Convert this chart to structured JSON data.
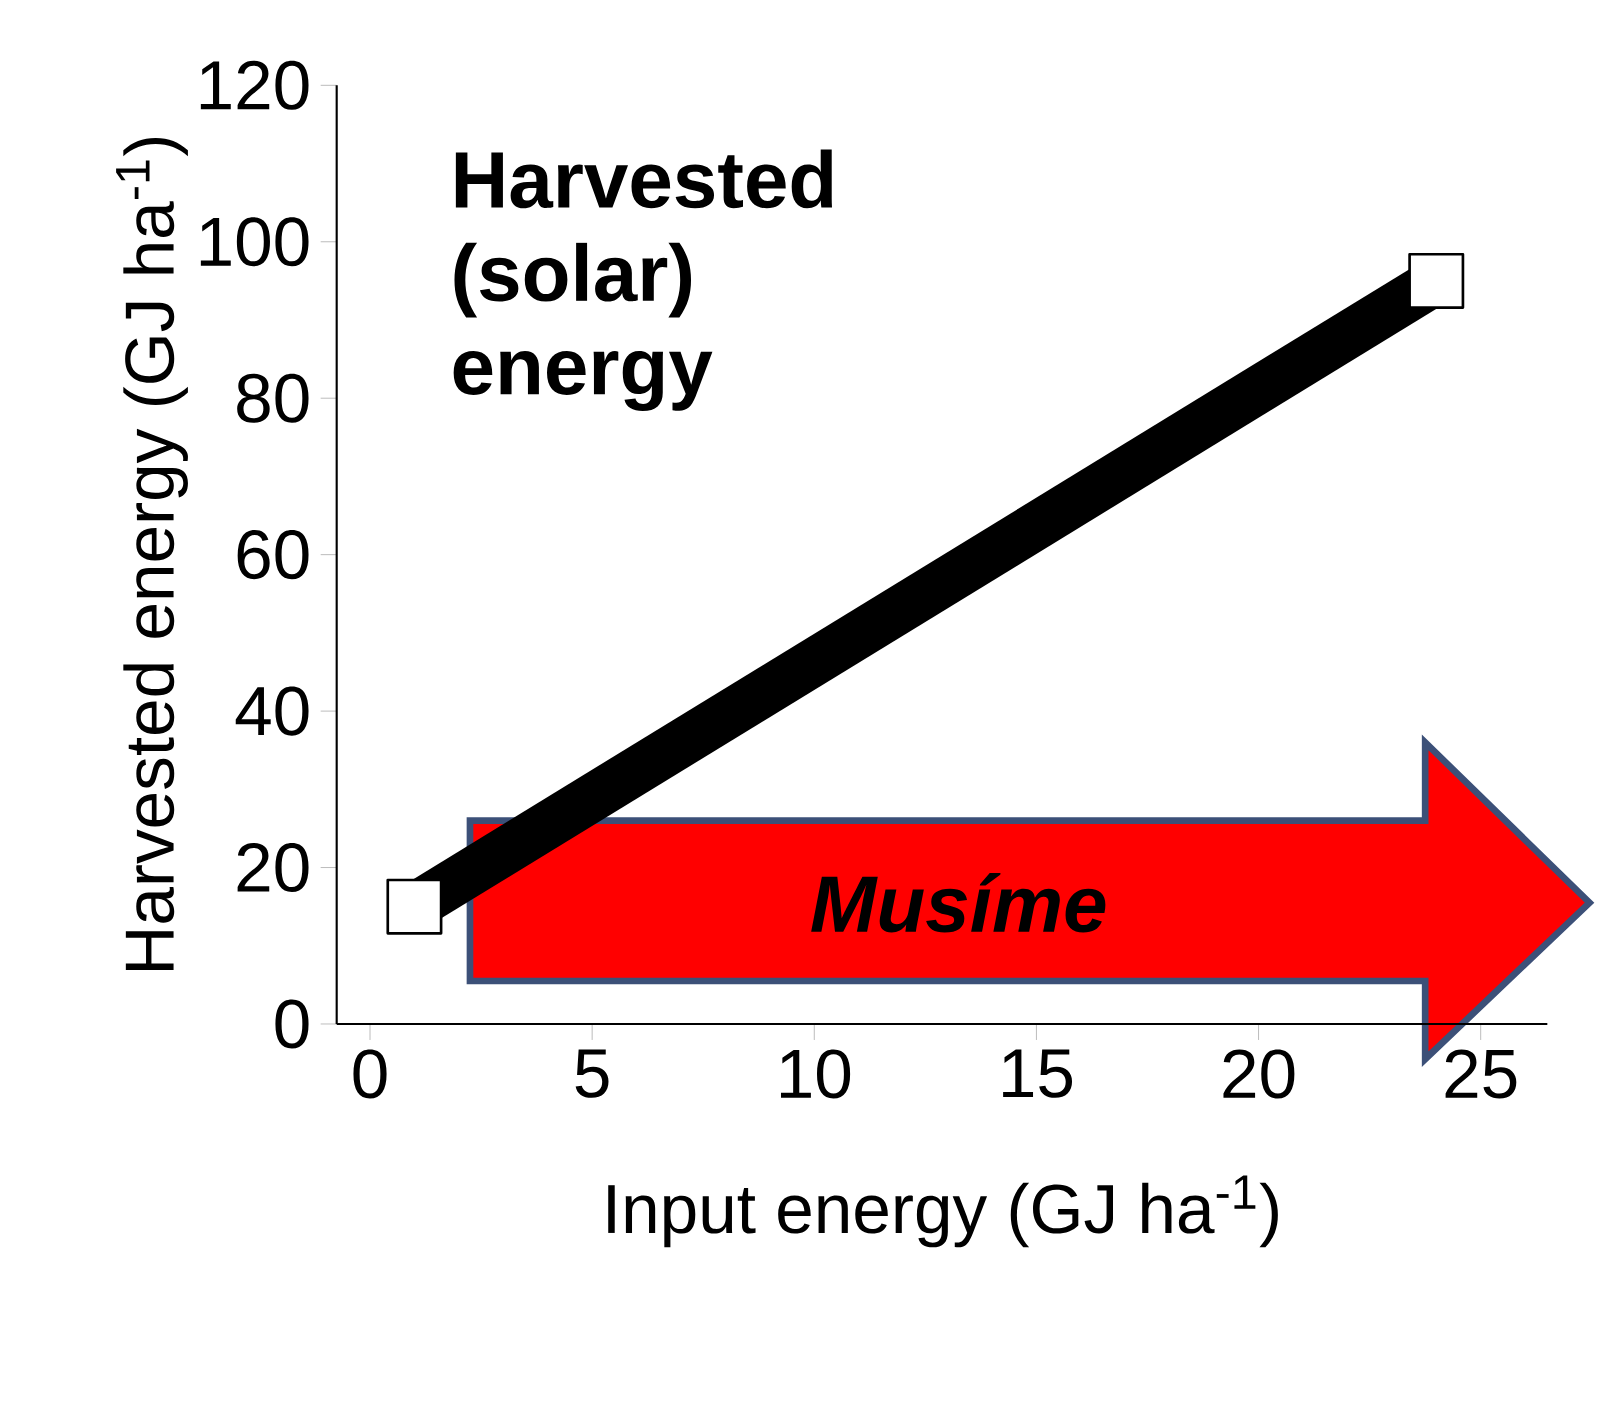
{
  "chart_data": {
    "type": "line",
    "xlabel": "Input energy (GJ ha$^{-1}$)",
    "ylabel": "Harvested energy (GJ ha$^{-1}$)",
    "x": [
      1,
      24
    ],
    "values": [
      15,
      95
    ],
    "color": "#000000",
    "marker": "square",
    "xlim": [
      -0.75,
      26.5
    ],
    "ylim": [
      0,
      120
    ],
    "xticks": [
      0,
      5,
      10,
      15,
      20,
      25
    ],
    "yticks": [
      0,
      20,
      40,
      60,
      80,
      100,
      120
    ],
    "annotations": [
      "Harvested (solar) energy",
      "Musíme"
    ]
  }
}
